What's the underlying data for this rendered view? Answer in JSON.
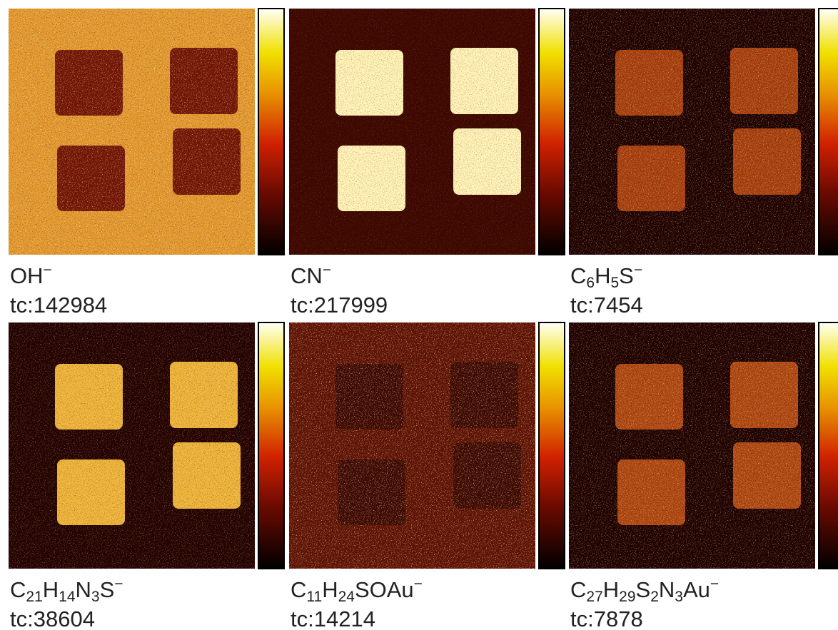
{
  "panels": [
    {
      "ion": [
        {
          "text": "OH"
        },
        {
          "sup": "−"
        }
      ],
      "counts": "tc:142984"
    },
    {
      "ion": [
        {
          "text": "CN"
        },
        {
          "sup": "−"
        }
      ],
      "counts": "tc:217999"
    },
    {
      "ion": [
        {
          "text": "C"
        },
        {
          "sub": "6"
        },
        {
          "text": "H"
        },
        {
          "sub": "5"
        },
        {
          "text": "S"
        },
        {
          "sup": "−"
        }
      ],
      "counts": "tc:7454"
    },
    {
      "ion": [
        {
          "text": "C"
        },
        {
          "sub": "21"
        },
        {
          "text": "H"
        },
        {
          "sub": "14"
        },
        {
          "text": "N"
        },
        {
          "sub": "3"
        },
        {
          "text": "S"
        },
        {
          "sup": "−"
        }
      ],
      "counts": "tc:38604"
    },
    {
      "ion": [
        {
          "text": "C"
        },
        {
          "sub": "11"
        },
        {
          "text": "H"
        },
        {
          "sub": "24"
        },
        {
          "text": "SOAu"
        },
        {
          "sup": "−"
        }
      ],
      "counts": "tc:14214"
    },
    {
      "ion": [
        {
          "text": "C"
        },
        {
          "sub": "27"
        },
        {
          "text": "H"
        },
        {
          "sub": "29"
        },
        {
          "text": "S"
        },
        {
          "sub": "2"
        },
        {
          "text": "N"
        },
        {
          "sub": "3"
        },
        {
          "text": "Au"
        },
        {
          "sup": "−"
        }
      ],
      "counts": "tc:7878"
    }
  ]
}
